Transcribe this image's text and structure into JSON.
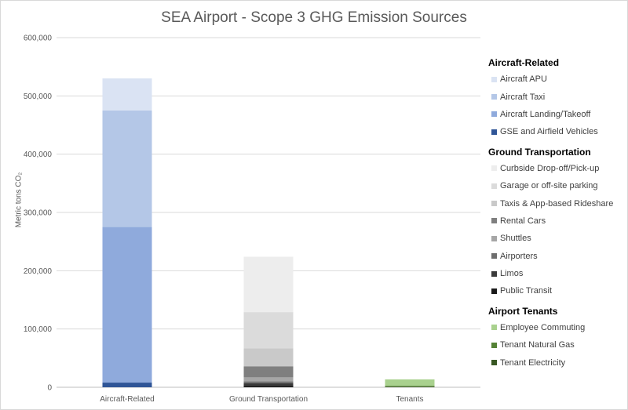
{
  "chart_data": {
    "type": "bar",
    "stacked": true,
    "title": "SEA Airport - Scope 3 GHG Emission Sources",
    "ylabel": "Metric tons CO₂",
    "ylim": [
      0,
      600000
    ],
    "yticks": [
      "0",
      "100,000",
      "200,000",
      "300,000",
      "400,000",
      "500,000",
      "600,000"
    ],
    "grid": true,
    "legend_position": "right",
    "categories": [
      "Aircraft-Related",
      "Ground Transportation",
      "Tenants"
    ],
    "series": [
      {
        "name": "Aircraft APU",
        "group": "Aircraft-Related",
        "color": "#dae3f3",
        "values": [
          55000,
          0,
          0
        ]
      },
      {
        "name": "Aircraft Taxi",
        "group": "Aircraft-Related",
        "color": "#b4c7e7",
        "values": [
          200000,
          0,
          0
        ]
      },
      {
        "name": "Aircraft Landing/Takeoff",
        "group": "Aircraft-Related",
        "color": "#8faadc",
        "values": [
          267000,
          0,
          0
        ]
      },
      {
        "name": "GSE and Airfield Vehicles",
        "group": "Aircraft-Related",
        "color": "#2f5597",
        "values": [
          8000,
          0,
          0
        ]
      },
      {
        "name": "Curbside Drop-off/Pick-up",
        "group": "Ground Transportation",
        "color": "#ededed",
        "values": [
          0,
          95000,
          0
        ]
      },
      {
        "name": "Garage or off-site parking",
        "group": "Ground Transportation",
        "color": "#dbdbdb",
        "values": [
          0,
          62000,
          0
        ]
      },
      {
        "name": "Taxis & App-based Rideshare",
        "group": "Ground Transportation",
        "color": "#c9c9c9",
        "values": [
          0,
          31000,
          0
        ]
      },
      {
        "name": "Rental Cars",
        "group": "Ground Transportation",
        "color": "#7f7f7f",
        "values": [
          0,
          19000,
          0
        ]
      },
      {
        "name": "Shuttles",
        "group": "Ground Transportation",
        "color": "#a6a6a6",
        "values": [
          0,
          7000,
          0
        ]
      },
      {
        "name": "Airporters",
        "group": "Ground Transportation",
        "color": "#6e6e6e",
        "values": [
          0,
          3000,
          0
        ]
      },
      {
        "name": "Limos",
        "group": "Ground Transportation",
        "color": "#3a3a3a",
        "values": [
          0,
          5000,
          0
        ]
      },
      {
        "name": "Public Transit",
        "group": "Ground Transportation",
        "color": "#1a1a1a",
        "values": [
          0,
          2000,
          0
        ]
      },
      {
        "name": "Employee Commuting",
        "group": "Airport Tenants",
        "color": "#a9d18e",
        "values": [
          0,
          0,
          11000
        ]
      },
      {
        "name": "Tenant Natural Gas",
        "group": "Airport Tenants",
        "color": "#548235",
        "values": [
          0,
          0,
          1500
        ]
      },
      {
        "name": "Tenant Electricity",
        "group": "Airport Tenants",
        "color": "#385723",
        "values": [
          0,
          0,
          1000
        ]
      }
    ],
    "legend_groups": [
      "Aircraft-Related",
      "Ground Transportation",
      "Airport Tenants"
    ]
  }
}
